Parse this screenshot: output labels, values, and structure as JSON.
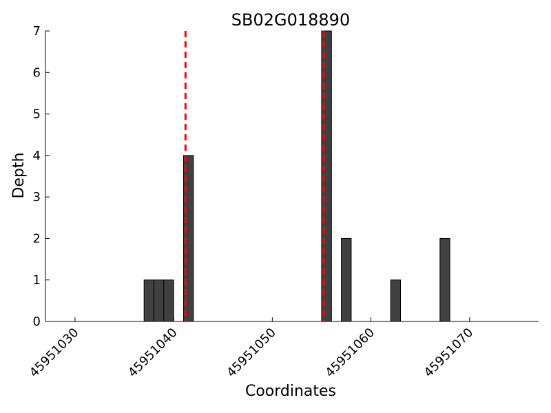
{
  "chart_data": {
    "type": "bar",
    "title": "SB02G018890",
    "xlabel": "Coordinates",
    "ylabel": "Depth",
    "xlim": [
      45951027,
      45951077
    ],
    "ylim": [
      0,
      7
    ],
    "bar_width": 1,
    "bar_color": "#404040",
    "x_ticks": [
      {
        "value": 45951030,
        "label": "45951030"
      },
      {
        "value": 45951040,
        "label": "45951040"
      },
      {
        "value": 45951050,
        "label": "45951050"
      },
      {
        "value": 45951060,
        "label": "45951060"
      },
      {
        "value": 45951070,
        "label": "45951070"
      }
    ],
    "y_ticks": [
      {
        "value": 0,
        "label": "0"
      },
      {
        "value": 1,
        "label": "1"
      },
      {
        "value": 2,
        "label": "2"
      },
      {
        "value": 3,
        "label": "3"
      },
      {
        "value": 4,
        "label": "4"
      },
      {
        "value": 5,
        "label": "5"
      },
      {
        "value": 6,
        "label": "6"
      },
      {
        "value": 7,
        "label": "7"
      }
    ],
    "bars": [
      {
        "x": 45951037,
        "y": 1
      },
      {
        "x": 45951038,
        "y": 1
      },
      {
        "x": 45951039,
        "y": 1
      },
      {
        "x": 45951041,
        "y": 4
      },
      {
        "x": 45951055,
        "y": 7
      },
      {
        "x": 45951057,
        "y": 2
      },
      {
        "x": 45951062,
        "y": 1
      },
      {
        "x": 45951067,
        "y": 2
      }
    ],
    "vlines": [
      {
        "x": 45951041.2,
        "color": "#ff0000",
        "style": "dashed"
      },
      {
        "x": 45951055.2,
        "color": "#ff0000",
        "style": "dashed"
      }
    ],
    "grid": false,
    "legend": "none"
  }
}
